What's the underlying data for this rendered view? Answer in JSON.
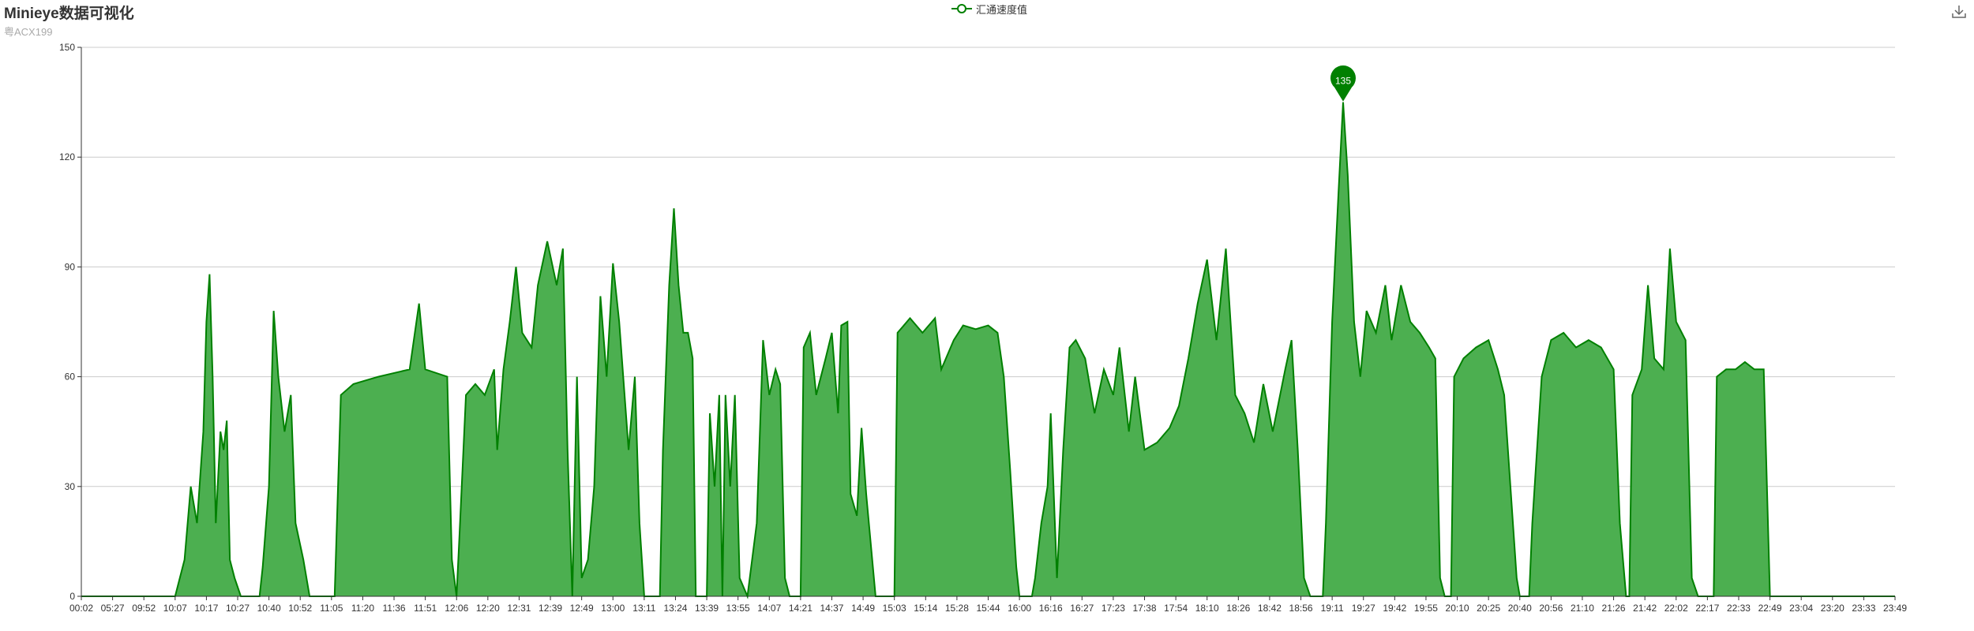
{
  "title": "Minieye数据可视化",
  "subtitle": "粤ACX199",
  "legend": {
    "label": "汇通速度值",
    "icon": "circle-line-legend-icon"
  },
  "toolbox": {
    "icon": "download-icon"
  },
  "colors": {
    "line": "#008000",
    "area": "#4caf50",
    "grid": "#cccccc",
    "axis": "#333333"
  },
  "chart_data": {
    "type": "area",
    "series_name": "汇通速度值",
    "ylim": [
      0,
      150
    ],
    "yticks": [
      0,
      30,
      60,
      90,
      120,
      150
    ],
    "x_tick_labels": [
      "00:02",
      "05:27",
      "09:52",
      "10:07",
      "10:17",
      "10:27",
      "10:40",
      "10:52",
      "11:05",
      "11:20",
      "11:36",
      "11:51",
      "12:06",
      "12:20",
      "12:31",
      "12:39",
      "12:49",
      "13:00",
      "13:11",
      "13:24",
      "13:39",
      "13:55",
      "14:07",
      "14:21",
      "14:37",
      "14:49",
      "15:03",
      "15:14",
      "15:28",
      "15:44",
      "16:00",
      "16:16",
      "16:27",
      "17:23",
      "17:38",
      "17:54",
      "18:10",
      "18:26",
      "18:42",
      "18:56",
      "19:11",
      "19:27",
      "19:42",
      "19:55",
      "20:10",
      "20:25",
      "20:40",
      "20:56",
      "21:10",
      "21:26",
      "21:42",
      "22:02",
      "22:17",
      "22:33",
      "22:49",
      "23:04",
      "23:20",
      "23:33",
      "23:49"
    ],
    "x_range": [
      0,
      58
    ],
    "points": [
      [
        0,
        0
      ],
      [
        3,
        0
      ],
      [
        3.3,
        10
      ],
      [
        3.5,
        30
      ],
      [
        3.7,
        20
      ],
      [
        3.9,
        45
      ],
      [
        4.0,
        75
      ],
      [
        4.1,
        88
      ],
      [
        4.2,
        60
      ],
      [
        4.3,
        20
      ],
      [
        4.45,
        45
      ],
      [
        4.55,
        40
      ],
      [
        4.65,
        48
      ],
      [
        4.75,
        10
      ],
      [
        4.9,
        5
      ],
      [
        5.1,
        0
      ],
      [
        5.7,
        0
      ],
      [
        5.8,
        8
      ],
      [
        6.0,
        30
      ],
      [
        6.15,
        78
      ],
      [
        6.3,
        60
      ],
      [
        6.5,
        45
      ],
      [
        6.7,
        55
      ],
      [
        6.85,
        20
      ],
      [
        7.1,
        10
      ],
      [
        7.3,
        0
      ],
      [
        8.1,
        0
      ],
      [
        8.3,
        55
      ],
      [
        8.7,
        58
      ],
      [
        9.5,
        60
      ],
      [
        10.5,
        62
      ],
      [
        10.8,
        80
      ],
      [
        11.0,
        62
      ],
      [
        11.7,
        60
      ],
      [
        11.85,
        10
      ],
      [
        12.0,
        0
      ],
      [
        12.1,
        18
      ],
      [
        12.3,
        55
      ],
      [
        12.6,
        58
      ],
      [
        12.9,
        55
      ],
      [
        13.2,
        62
      ],
      [
        13.3,
        40
      ],
      [
        13.5,
        62
      ],
      [
        13.7,
        75
      ],
      [
        13.9,
        90
      ],
      [
        14.1,
        72
      ],
      [
        14.4,
        68
      ],
      [
        14.6,
        85
      ],
      [
        14.9,
        97
      ],
      [
        15.2,
        85
      ],
      [
        15.4,
        95
      ],
      [
        15.55,
        40
      ],
      [
        15.7,
        0
      ],
      [
        15.85,
        60
      ],
      [
        16.0,
        5
      ],
      [
        16.2,
        10
      ],
      [
        16.4,
        30
      ],
      [
        16.6,
        82
      ],
      [
        16.8,
        60
      ],
      [
        17.0,
        91
      ],
      [
        17.2,
        75
      ],
      [
        17.5,
        40
      ],
      [
        17.7,
        60
      ],
      [
        17.85,
        20
      ],
      [
        18.0,
        0
      ],
      [
        18.5,
        0
      ],
      [
        18.6,
        40
      ],
      [
        18.8,
        85
      ],
      [
        18.95,
        106
      ],
      [
        19.1,
        85
      ],
      [
        19.25,
        72
      ],
      [
        19.4,
        72
      ],
      [
        19.55,
        65
      ],
      [
        19.65,
        0
      ],
      [
        20.0,
        0
      ],
      [
        20.1,
        50
      ],
      [
        20.25,
        30
      ],
      [
        20.4,
        55
      ],
      [
        20.5,
        0
      ],
      [
        20.6,
        55
      ],
      [
        20.75,
        30
      ],
      [
        20.9,
        55
      ],
      [
        21.05,
        5
      ],
      [
        21.3,
        0
      ],
      [
        21.6,
        20
      ],
      [
        21.8,
        70
      ],
      [
        22.0,
        55
      ],
      [
        22.2,
        62
      ],
      [
        22.35,
        58
      ],
      [
        22.5,
        5
      ],
      [
        22.65,
        0
      ],
      [
        23.0,
        0
      ],
      [
        23.1,
        68
      ],
      [
        23.3,
        72
      ],
      [
        23.5,
        55
      ],
      [
        23.8,
        65
      ],
      [
        24.0,
        72
      ],
      [
        24.2,
        50
      ],
      [
        24.3,
        74
      ],
      [
        24.5,
        75
      ],
      [
        24.6,
        28
      ],
      [
        24.8,
        22
      ],
      [
        24.95,
        46
      ],
      [
        25.1,
        28
      ],
      [
        25.4,
        0
      ],
      [
        26.0,
        0
      ],
      [
        26.1,
        72
      ],
      [
        26.5,
        76
      ],
      [
        26.9,
        72
      ],
      [
        27.3,
        76
      ],
      [
        27.5,
        62
      ],
      [
        27.9,
        70
      ],
      [
        28.2,
        74
      ],
      [
        28.6,
        73
      ],
      [
        29.0,
        74
      ],
      [
        29.3,
        72
      ],
      [
        29.5,
        60
      ],
      [
        29.7,
        35
      ],
      [
        29.9,
        8
      ],
      [
        30.0,
        0
      ],
      [
        30.4,
        0
      ],
      [
        30.5,
        5
      ],
      [
        30.7,
        20
      ],
      [
        30.9,
        30
      ],
      [
        31.0,
        50
      ],
      [
        31.2,
        5
      ],
      [
        31.4,
        40
      ],
      [
        31.6,
        68
      ],
      [
        31.8,
        70
      ],
      [
        32.1,
        65
      ],
      [
        32.4,
        50
      ],
      [
        32.7,
        62
      ],
      [
        33.0,
        55
      ],
      [
        33.2,
        68
      ],
      [
        33.5,
        45
      ],
      [
        33.7,
        60
      ],
      [
        34.0,
        40
      ],
      [
        34.4,
        42
      ],
      [
        34.8,
        46
      ],
      [
        35.1,
        52
      ],
      [
        35.4,
        65
      ],
      [
        35.7,
        80
      ],
      [
        36.0,
        92
      ],
      [
        36.3,
        70
      ],
      [
        36.6,
        95
      ],
      [
        36.9,
        55
      ],
      [
        37.2,
        50
      ],
      [
        37.5,
        42
      ],
      [
        37.8,
        58
      ],
      [
        38.1,
        45
      ],
      [
        38.5,
        62
      ],
      [
        38.7,
        70
      ],
      [
        38.9,
        40
      ],
      [
        39.1,
        5
      ],
      [
        39.3,
        0
      ],
      [
        39.7,
        0
      ],
      [
        39.8,
        20
      ],
      [
        40.0,
        75
      ],
      [
        40.2,
        110
      ],
      [
        40.35,
        135
      ],
      [
        40.5,
        115
      ],
      [
        40.7,
        75
      ],
      [
        40.9,
        60
      ],
      [
        41.1,
        78
      ],
      [
        41.4,
        72
      ],
      [
        41.7,
        85
      ],
      [
        41.9,
        70
      ],
      [
        42.2,
        85
      ],
      [
        42.5,
        75
      ],
      [
        42.8,
        72
      ],
      [
        43.1,
        68
      ],
      [
        43.3,
        65
      ],
      [
        43.45,
        5
      ],
      [
        43.6,
        0
      ],
      [
        43.8,
        0
      ],
      [
        43.9,
        60
      ],
      [
        44.2,
        65
      ],
      [
        44.6,
        68
      ],
      [
        45.0,
        70
      ],
      [
        45.3,
        62
      ],
      [
        45.5,
        55
      ],
      [
        45.7,
        30
      ],
      [
        45.9,
        5
      ],
      [
        46.0,
        0
      ],
      [
        46.3,
        0
      ],
      [
        46.4,
        20
      ],
      [
        46.7,
        60
      ],
      [
        47.0,
        70
      ],
      [
        47.4,
        72
      ],
      [
        47.8,
        68
      ],
      [
        48.2,
        70
      ],
      [
        48.6,
        68
      ],
      [
        49.0,
        62
      ],
      [
        49.2,
        20
      ],
      [
        49.4,
        0
      ],
      [
        49.5,
        0
      ],
      [
        49.6,
        55
      ],
      [
        49.9,
        62
      ],
      [
        50.1,
        85
      ],
      [
        50.3,
        65
      ],
      [
        50.6,
        62
      ],
      [
        50.8,
        95
      ],
      [
        51.0,
        75
      ],
      [
        51.3,
        70
      ],
      [
        51.5,
        5
      ],
      [
        51.7,
        0
      ],
      [
        52.2,
        0
      ],
      [
        52.3,
        60
      ],
      [
        52.6,
        62
      ],
      [
        52.9,
        62
      ],
      [
        53.2,
        64
      ],
      [
        53.5,
        62
      ],
      [
        53.8,
        62
      ],
      [
        54.0,
        0
      ],
      [
        58,
        0
      ]
    ],
    "markPoint": {
      "label": "135",
      "value": 135,
      "x": 40.35
    }
  }
}
